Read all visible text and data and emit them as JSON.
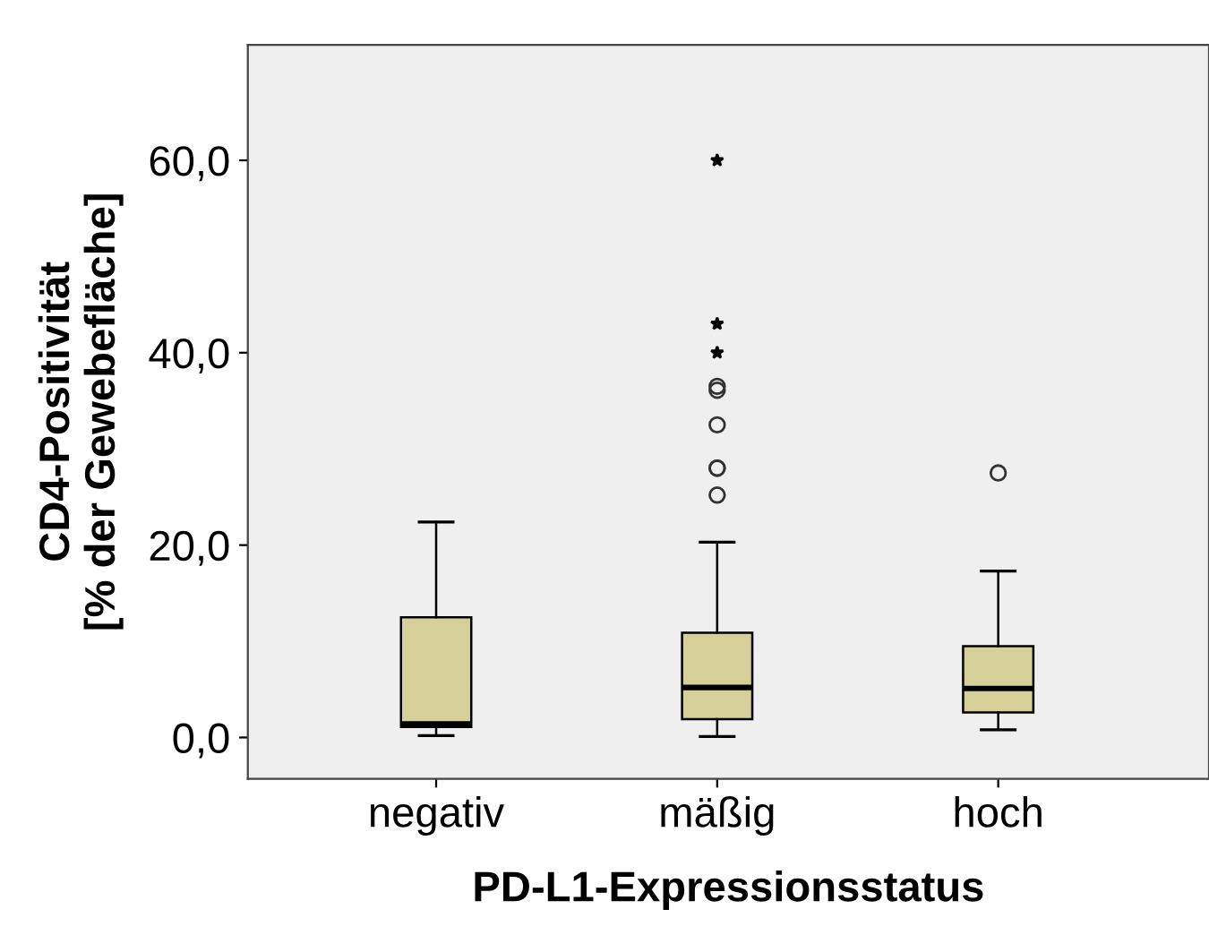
{
  "chart_data": {
    "type": "box",
    "xlabel": "PD-L1-Expressionsstatus",
    "ylabel": "CD4-Positivität\n[% der Gewebefläche]",
    "categories": [
      "negativ",
      "mäßig",
      "hoch"
    ],
    "boxes": [
      {
        "low": 0.2,
        "q1": 1.1,
        "median": 1.4,
        "q3": 12.5,
        "high": 22.4
      },
      {
        "low": 0.1,
        "q1": 1.9,
        "median": 5.2,
        "q3": 10.9,
        "high": 20.3,
        "outliers": [
          25.2,
          28.0,
          28.0,
          32.5,
          36.1,
          36.5,
          40.0,
          43.0,
          60.0
        ]
      },
      {
        "low": 0.8,
        "q1": 2.6,
        "median": 5.1,
        "q3": 9.5,
        "high": 17.3,
        "outliers": [
          27.5
        ]
      }
    ],
    "color": "#d4d098",
    "ylim": [
      -4.3,
      72
    ],
    "yticks": [
      {
        "value": 0,
        "label": "0,0"
      },
      {
        "value": 20,
        "label": "20,0"
      },
      {
        "value": 40,
        "label": "40,0"
      },
      {
        "value": 60,
        "label": "60,0"
      }
    ],
    "grid": false,
    "legend": false
  }
}
